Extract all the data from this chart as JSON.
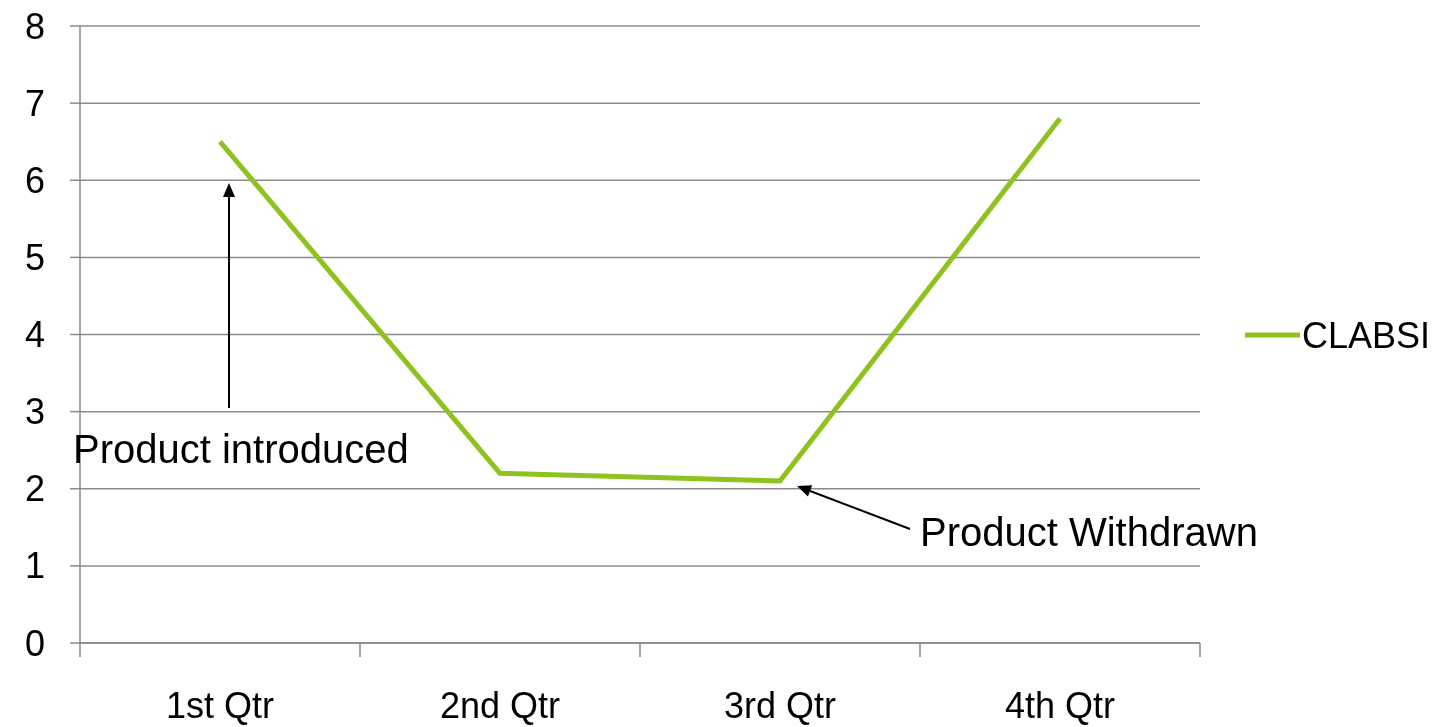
{
  "chart_data": {
    "type": "line",
    "categories": [
      "1st Qtr",
      "2nd Qtr",
      "3rd Qtr",
      "4th Qtr"
    ],
    "series": [
      {
        "name": "CLABSI",
        "color": "#8dc21f",
        "values": [
          6.5,
          2.2,
          2.1,
          6.8
        ]
      }
    ],
    "ylim": [
      0,
      8
    ],
    "yticks": [
      0,
      1,
      2,
      3,
      4,
      5,
      6,
      7,
      8
    ],
    "grid": "y",
    "legend": "right",
    "marker": "none",
    "annotations": [
      "Product introduced",
      "Product Withdrawn"
    ]
  }
}
